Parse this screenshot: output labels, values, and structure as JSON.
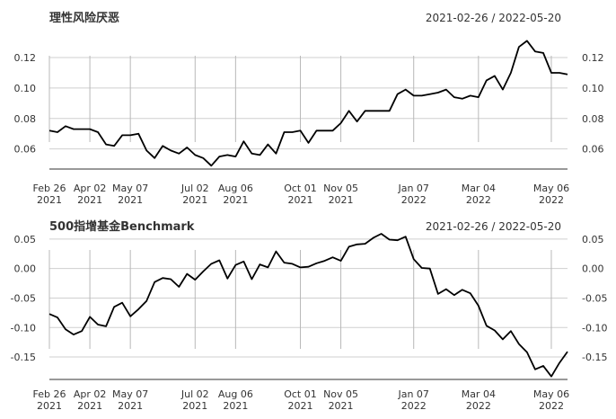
{
  "chart_data": [
    {
      "type": "line",
      "title": "理性风险厌恶",
      "date_range": "2021-02-26 / 2022-05-20",
      "x_ticks": [
        {
          "date": "2021-02-26",
          "line1": "Feb 26",
          "line2": "2021"
        },
        {
          "date": "2021-04-02",
          "line1": "Apr 02",
          "line2": "2021"
        },
        {
          "date": "2021-05-07",
          "line1": "May 07",
          "line2": "2021"
        },
        {
          "date": "2021-07-02",
          "line1": "Jul 02",
          "line2": "2021"
        },
        {
          "date": "2021-08-06",
          "line1": "Aug 06",
          "line2": "2021"
        },
        {
          "date": "2021-10-01",
          "line1": "Oct 01",
          "line2": "2021"
        },
        {
          "date": "2021-11-05",
          "line1": "Nov 05",
          "line2": "2021"
        },
        {
          "date": "2022-01-07",
          "line1": "Jan 07",
          "line2": "2022"
        },
        {
          "date": "2022-03-04",
          "line1": "Mar 04",
          "line2": "2022"
        },
        {
          "date": "2022-05-06",
          "line1": "May 06",
          "line2": "2022"
        }
      ],
      "y_ticks": [
        "0.06",
        "0.08",
        "0.10",
        "0.12"
      ],
      "ylim": [
        0.048,
        0.133
      ],
      "x": [
        "2021-02-26",
        "2021-03-05",
        "2021-03-12",
        "2021-03-19",
        "2021-03-26",
        "2021-04-02",
        "2021-04-09",
        "2021-04-16",
        "2021-04-23",
        "2021-04-30",
        "2021-05-07",
        "2021-05-14",
        "2021-05-21",
        "2021-05-28",
        "2021-06-04",
        "2021-06-11",
        "2021-06-18",
        "2021-06-25",
        "2021-07-02",
        "2021-07-09",
        "2021-07-16",
        "2021-07-23",
        "2021-07-30",
        "2021-08-06",
        "2021-08-13",
        "2021-08-20",
        "2021-08-27",
        "2021-09-03",
        "2021-09-10",
        "2021-09-17",
        "2021-09-24",
        "2021-10-01",
        "2021-10-08",
        "2021-10-15",
        "2021-10-22",
        "2021-10-29",
        "2021-11-05",
        "2021-11-12",
        "2021-11-19",
        "2021-11-26",
        "2021-12-03",
        "2021-12-10",
        "2021-12-17",
        "2021-12-24",
        "2021-12-31",
        "2022-01-07",
        "2022-01-14",
        "2022-01-21",
        "2022-01-28",
        "2022-02-04",
        "2022-02-11",
        "2022-02-18",
        "2022-02-25",
        "2022-03-04",
        "2022-03-11",
        "2022-03-18",
        "2022-03-25",
        "2022-04-01",
        "2022-04-08",
        "2022-04-15",
        "2022-04-22",
        "2022-04-29",
        "2022-05-06",
        "2022-05-13",
        "2022-05-20"
      ],
      "values": [
        0.072,
        0.071,
        0.075,
        0.073,
        0.073,
        0.073,
        0.071,
        0.063,
        0.062,
        0.069,
        0.069,
        0.07,
        0.059,
        0.054,
        0.062,
        0.059,
        0.057,
        0.061,
        0.056,
        0.054,
        0.049,
        0.055,
        0.056,
        0.055,
        0.065,
        0.057,
        0.056,
        0.063,
        0.057,
        0.071,
        0.071,
        0.072,
        0.064,
        0.072,
        0.072,
        0.072,
        0.077,
        0.085,
        0.078,
        0.085,
        0.085,
        0.085,
        0.085,
        0.096,
        0.099,
        0.095,
        0.095,
        0.096,
        0.097,
        0.099,
        0.094,
        0.093,
        0.095,
        0.094,
        0.105,
        0.108,
        0.099,
        0.11,
        0.127,
        0.131,
        0.124,
        0.123,
        0.11,
        0.11,
        0.109
      ]
    },
    {
      "type": "line",
      "title": "500指增基金Benchmark",
      "date_range": "2021-02-26 / 2022-05-20",
      "x_ticks": [
        {
          "date": "2021-02-26",
          "line1": "Feb 26",
          "line2": "2021"
        },
        {
          "date": "2021-04-02",
          "line1": "Apr 02",
          "line2": "2021"
        },
        {
          "date": "2021-05-07",
          "line1": "May 07",
          "line2": "2021"
        },
        {
          "date": "2021-07-02",
          "line1": "Jul 02",
          "line2": "2021"
        },
        {
          "date": "2021-08-06",
          "line1": "Aug 06",
          "line2": "2021"
        },
        {
          "date": "2021-10-01",
          "line1": "Oct 01",
          "line2": "2021"
        },
        {
          "date": "2021-11-05",
          "line1": "Nov 05",
          "line2": "2021"
        },
        {
          "date": "2022-01-07",
          "line1": "Jan 07",
          "line2": "2022"
        },
        {
          "date": "2022-03-04",
          "line1": "Mar 04",
          "line2": "2022"
        },
        {
          "date": "2022-05-06",
          "line1": "May 06",
          "line2": "2022"
        }
      ],
      "y_ticks": [
        "-0.15",
        "-0.10",
        "-0.05",
        "0.00",
        "0.05"
      ],
      "ylim": [
        -0.185,
        0.062
      ],
      "x": [
        "2021-02-26",
        "2021-03-05",
        "2021-03-12",
        "2021-03-19",
        "2021-03-26",
        "2021-04-02",
        "2021-04-09",
        "2021-04-16",
        "2021-04-23",
        "2021-04-30",
        "2021-05-07",
        "2021-05-14",
        "2021-05-21",
        "2021-05-28",
        "2021-06-04",
        "2021-06-11",
        "2021-06-18",
        "2021-06-25",
        "2021-07-02",
        "2021-07-09",
        "2021-07-16",
        "2021-07-23",
        "2021-07-30",
        "2021-08-06",
        "2021-08-13",
        "2021-08-20",
        "2021-08-27",
        "2021-09-03",
        "2021-09-10",
        "2021-09-17",
        "2021-09-24",
        "2021-10-01",
        "2021-10-08",
        "2021-10-15",
        "2021-10-22",
        "2021-10-29",
        "2021-11-05",
        "2021-11-12",
        "2021-11-19",
        "2021-11-26",
        "2021-12-03",
        "2021-12-10",
        "2021-12-17",
        "2021-12-24",
        "2021-12-31",
        "2022-01-07",
        "2022-01-14",
        "2022-01-21",
        "2022-01-28",
        "2022-02-04",
        "2022-02-11",
        "2022-02-18",
        "2022-02-25",
        "2022-03-04",
        "2022-03-11",
        "2022-03-18",
        "2022-03-25",
        "2022-04-01",
        "2022-04-08",
        "2022-04-15",
        "2022-04-22",
        "2022-04-29",
        "2022-05-06",
        "2022-05-13",
        "2022-05-20"
      ],
      "values": [
        -0.077,
        -0.083,
        -0.103,
        -0.112,
        -0.106,
        -0.082,
        -0.095,
        -0.098,
        -0.065,
        -0.058,
        -0.081,
        -0.069,
        -0.055,
        -0.023,
        -0.016,
        -0.018,
        -0.031,
        -0.009,
        -0.019,
        -0.005,
        0.008,
        0.014,
        -0.017,
        0.006,
        0.012,
        -0.018,
        0.007,
        0.002,
        0.029,
        0.01,
        0.008,
        0.002,
        0.003,
        0.009,
        0.013,
        0.019,
        0.013,
        0.037,
        0.041,
        0.042,
        0.052,
        0.059,
        0.049,
        0.048,
        0.054,
        0.016,
        0.001,
        0.0,
        -0.043,
        -0.035,
        -0.045,
        -0.036,
        -0.042,
        -0.063,
        -0.097,
        -0.105,
        -0.12,
        -0.106,
        -0.128,
        -0.142,
        -0.171,
        -0.165,
        -0.183,
        -0.16,
        -0.141
      ]
    }
  ]
}
